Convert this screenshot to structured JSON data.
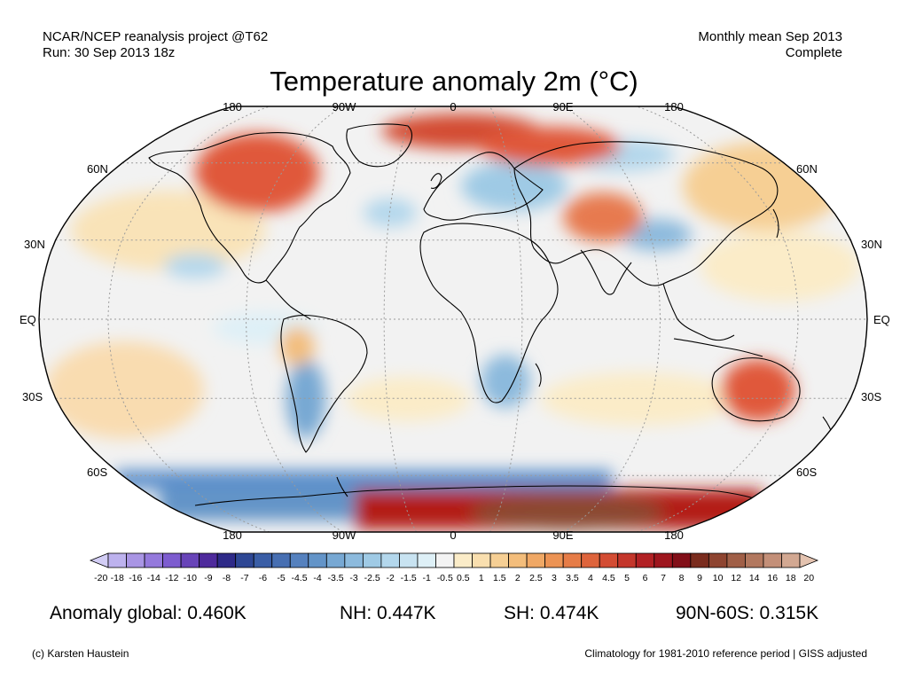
{
  "header": {
    "source_line1": "NCAR/NCEP reanalysis project @T62",
    "source_line2": "Run: 30 Sep 2013 18z",
    "period_line1": "Monthly mean Sep 2013",
    "period_line2": "Complete"
  },
  "title": "Temperature anomaly 2m (°C)",
  "map": {
    "projection": "Robinson",
    "lon_labels": [
      "180",
      "90W",
      "0",
      "90E",
      "180"
    ],
    "lat_labels": [
      "60N",
      "30N",
      "EQ",
      "30S",
      "60S"
    ],
    "colors": {
      "neutral": "#f2f2f2",
      "gridline": "#9a9a9a",
      "coastline": "#000000"
    },
    "anomaly_regions": [
      {
        "region": "Alaska / NW Canada",
        "color": "#e0593a"
      },
      {
        "region": "Arctic north of Europe",
        "color": "#c8201a"
      },
      {
        "region": "Scandinavia",
        "color": "#e0593a"
      },
      {
        "region": "Central Asia / Mongolia",
        "color": "#e77a4f"
      },
      {
        "region": "Australia",
        "color": "#e0593a"
      },
      {
        "region": "Antarctica (East)",
        "color": "#b31c14"
      },
      {
        "region": "Antarctic interior",
        "color": "#8b4a32"
      },
      {
        "region": "Eastern Europe / W Russia",
        "color": "#9ccbe6"
      },
      {
        "region": "Southern Ocean belt",
        "color": "#5b8fcb"
      },
      {
        "region": "North Pacific",
        "color": "#f9e3b8"
      },
      {
        "region": "South Pacific",
        "color": "#f9dcb0"
      }
    ]
  },
  "colorbar": {
    "labels": [
      "-20",
      "-18",
      "-16",
      "-14",
      "-12",
      "-10",
      "-9",
      "-8",
      "-7",
      "-6",
      "-5",
      "-4.5",
      "-4",
      "-3.5",
      "-3",
      "-2.5",
      "-2",
      "-1.5",
      "-1",
      "-0.5",
      "0.5",
      "1",
      "1.5",
      "2",
      "2.5",
      "3",
      "3.5",
      "4",
      "4.5",
      "5",
      "6",
      "7",
      "8",
      "9",
      "10",
      "12",
      "14",
      "16",
      "18",
      "20"
    ],
    "colors": [
      "#d2cdf5",
      "#bdb2ee",
      "#a995e4",
      "#9479dc",
      "#7d5ccf",
      "#6844b8",
      "#4e2a9c",
      "#2e2a88",
      "#2e4794",
      "#3a5ea6",
      "#476fb2",
      "#5581be",
      "#6394c8",
      "#77a8d3",
      "#8cbadd",
      "#9fcae5",
      "#b3d7ec",
      "#c8e3f1",
      "#def0f7",
      "#f3f3f3",
      "#fbecc8",
      "#f9dfaf",
      "#f6cf94",
      "#f3bd7b",
      "#f0a865",
      "#ec9354",
      "#e67c47",
      "#de643c",
      "#d34c33",
      "#c4362b",
      "#b22124",
      "#9e161e",
      "#820f18",
      "#7a2c1e",
      "#8e4430",
      "#a05f47",
      "#b2785f",
      "#c38f78",
      "#d2a892",
      "#e4c3b0"
    ]
  },
  "stats": {
    "global": "Anomaly global: 0.460K",
    "nh": "NH: 0.447K",
    "sh": "SH: 0.474K",
    "polar": "90N-60S: 0.315K"
  },
  "footer": {
    "credit": "(c) Karsten Haustein",
    "note": "Climatology for 1981-2010 reference period | GISS adjusted"
  }
}
